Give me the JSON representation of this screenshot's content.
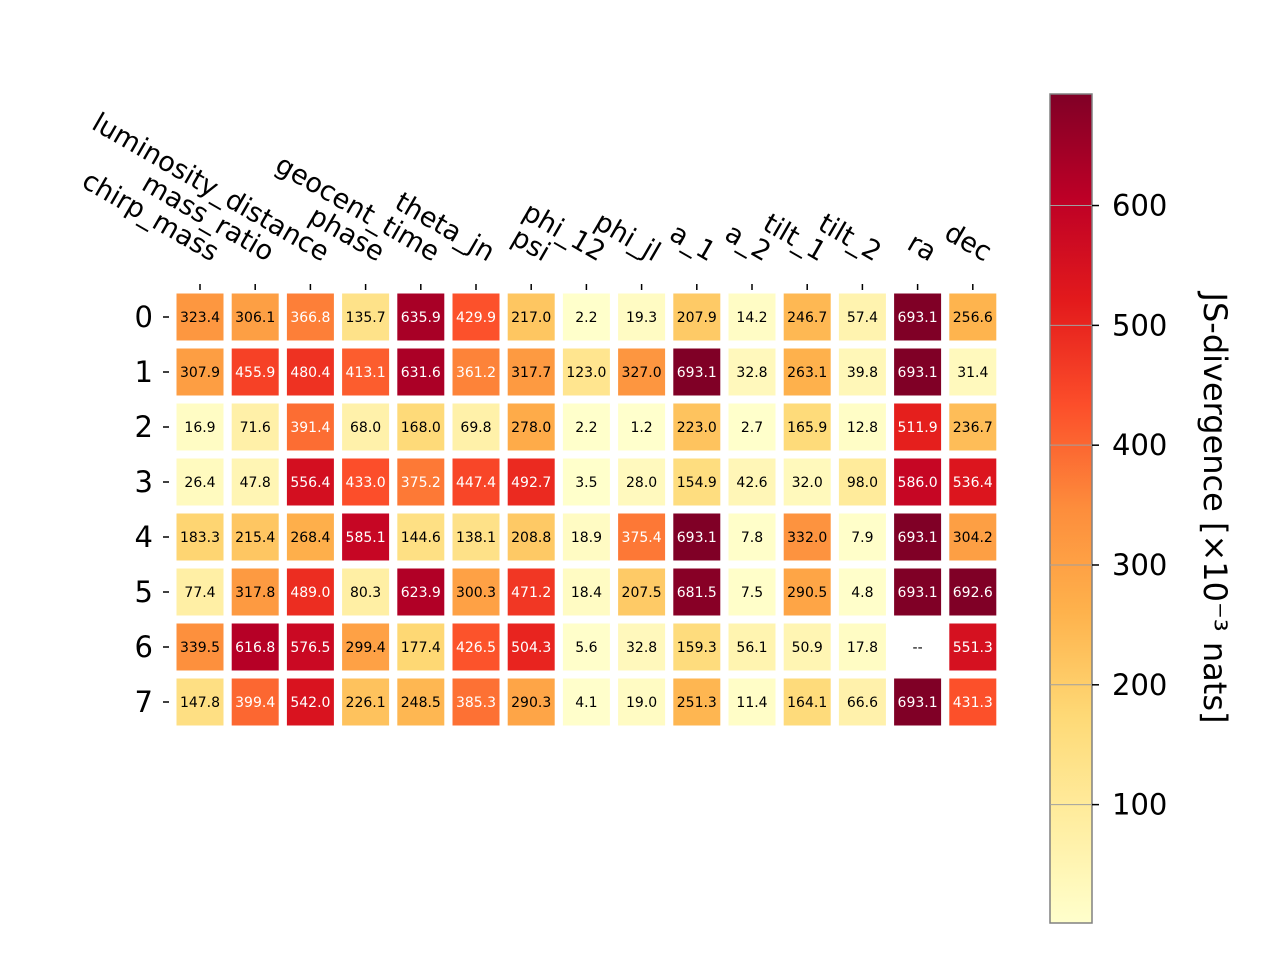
{
  "chart_data": {
    "type": "heatmap",
    "columns": [
      "chirp_mass",
      "mass_ratio",
      "luminosity_distance",
      "phase",
      "geocent_time",
      "theta_jn",
      "psi",
      "phi_12",
      "phi_jl",
      "a_1",
      "a_2",
      "tilt_1",
      "tilt_2",
      "ra",
      "dec"
    ],
    "rows": [
      "0",
      "1",
      "2",
      "3",
      "4",
      "5",
      "6",
      "7"
    ],
    "values": [
      [
        323.4,
        306.1,
        366.8,
        135.7,
        635.9,
        429.9,
        217.0,
        2.2,
        19.3,
        207.9,
        14.2,
        246.7,
        57.4,
        693.1,
        256.6
      ],
      [
        307.9,
        455.9,
        480.4,
        413.1,
        631.6,
        361.2,
        317.7,
        123.0,
        327.0,
        693.1,
        32.8,
        263.1,
        39.8,
        693.1,
        31.4
      ],
      [
        16.9,
        71.6,
        391.4,
        68.0,
        168.0,
        69.8,
        278.0,
        2.2,
        1.2,
        223.0,
        2.7,
        165.9,
        12.8,
        511.9,
        236.7
      ],
      [
        26.4,
        47.8,
        556.4,
        433.0,
        375.2,
        447.4,
        492.7,
        3.5,
        28.0,
        154.9,
        42.6,
        32.0,
        98.0,
        586.0,
        536.4
      ],
      [
        183.3,
        215.4,
        268.4,
        585.1,
        144.6,
        138.1,
        208.8,
        18.9,
        375.4,
        693.1,
        7.8,
        332.0,
        7.9,
        693.1,
        304.2
      ],
      [
        77.4,
        317.8,
        489.0,
        80.3,
        623.9,
        300.3,
        471.2,
        18.4,
        207.5,
        681.5,
        7.5,
        290.5,
        4.8,
        693.1,
        692.6
      ],
      [
        339.5,
        616.8,
        576.5,
        299.4,
        177.4,
        426.5,
        504.3,
        5.6,
        32.8,
        159.3,
        56.1,
        50.9,
        17.8,
        null,
        551.3
      ],
      [
        147.8,
        399.4,
        542.0,
        226.1,
        248.5,
        385.3,
        290.3,
        4.1,
        19.0,
        251.3,
        11.4,
        164.1,
        66.6,
        693.1,
        431.3
      ]
    ],
    "missing_label": "--",
    "colorbar": {
      "label": "JS-divergence [×10⁻³ nats]",
      "ticks": [
        100,
        200,
        300,
        400,
        500,
        600
      ],
      "range": [
        1.2,
        693.1
      ],
      "colormap": "YlOrRd",
      "colors": [
        "#ffffcc",
        "#ffeda0",
        "#fed976",
        "#feb24c",
        "#fd8d3c",
        "#fc4e2a",
        "#e31a1c",
        "#bd0026",
        "#800026"
      ]
    }
  }
}
